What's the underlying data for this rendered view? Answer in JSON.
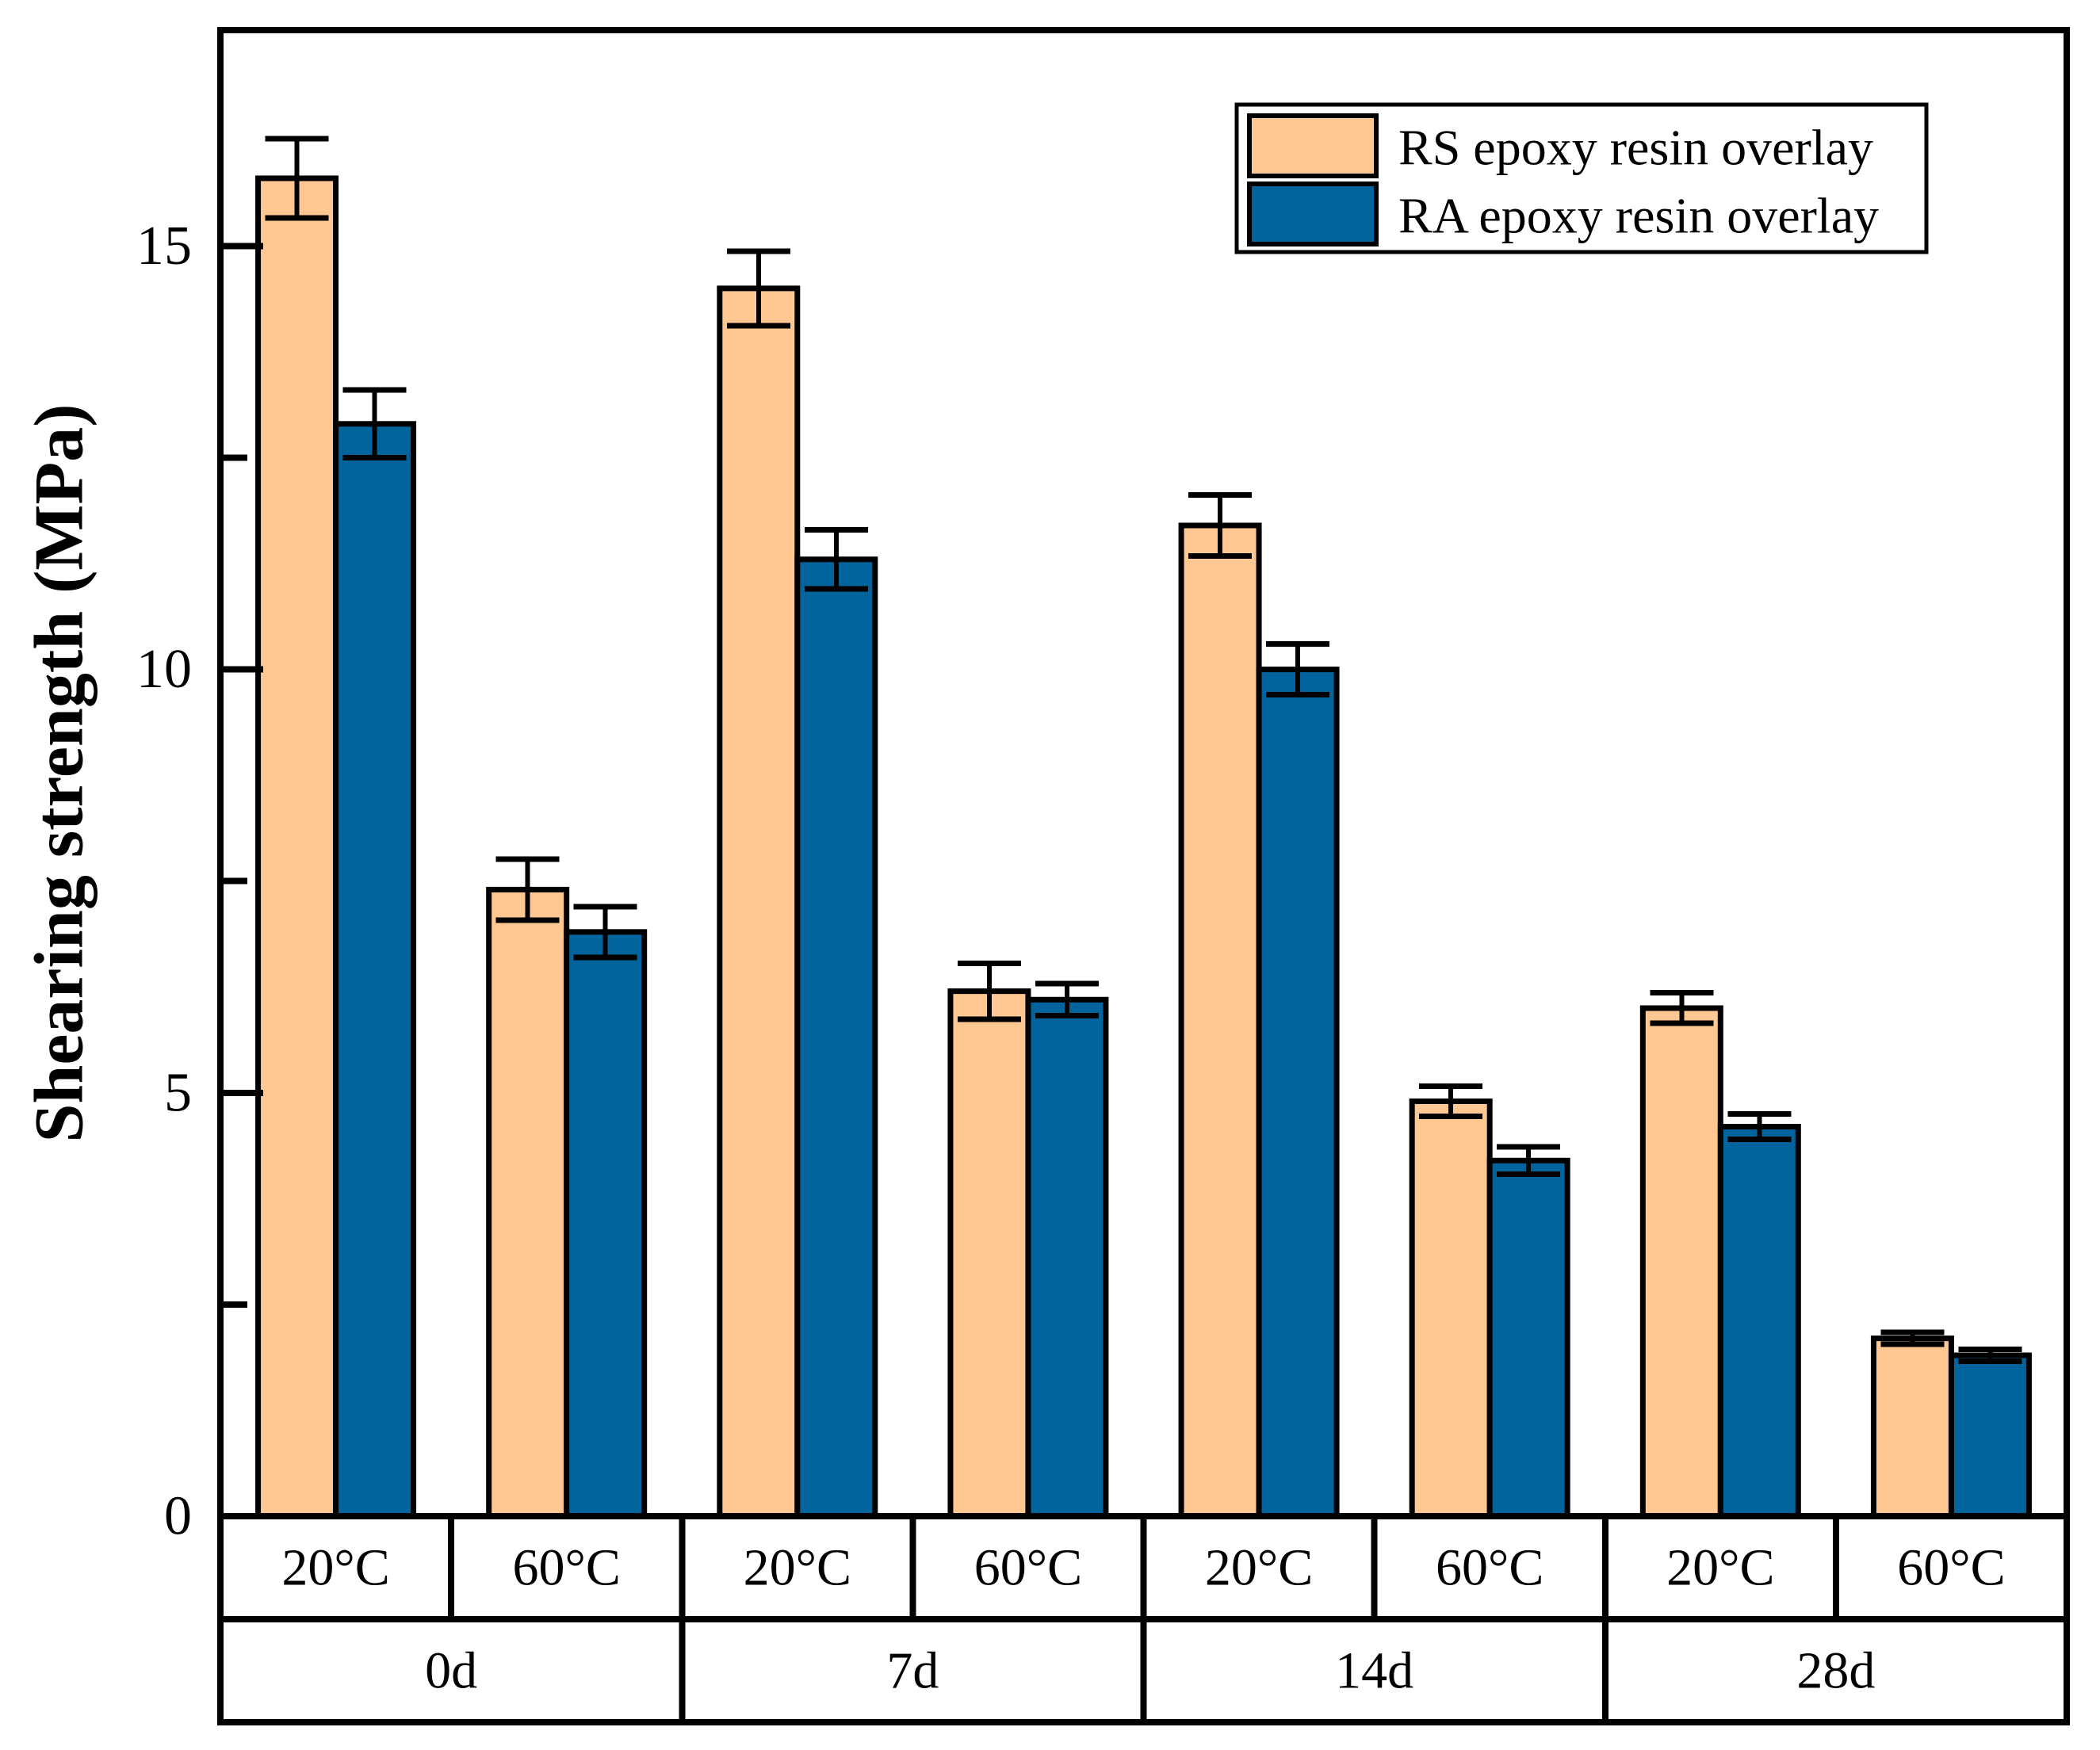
{
  "figure": {
    "background": "#ffffff",
    "axis_color": "#000000",
    "y_axis": {
      "label": "Shearing strength (MPa)",
      "major_ticks": [
        0,
        5,
        10,
        15
      ],
      "minor_ticks": [
        2.5,
        7.5,
        12.5
      ]
    },
    "legend": {
      "items": [
        {
          "label": "RS epoxy resin overlay",
          "color": "#FFC893"
        },
        {
          "label": "RA epoxy resin overlay",
          "color": "#01649C"
        }
      ]
    }
  },
  "chart_data": {
    "type": "bar",
    "title": "",
    "xlabel": "",
    "ylabel": "Shearing strength (MPa)",
    "ylim": [
      0,
      17.55
    ],
    "grid": false,
    "legend_position": "top-right",
    "group_labels": [
      "0d",
      "7d",
      "14d",
      "28d"
    ],
    "subgroup_labels": [
      "20°C",
      "60°C"
    ],
    "categories": [
      "0d 20°C",
      "0d 60°C",
      "7d 20°C",
      "7d 60°C",
      "14d 20°C",
      "14d 60°C",
      "28d 20°C",
      "28d 60°C"
    ],
    "series": [
      {
        "name": "RS epoxy resin overlay",
        "color": "#FFC893",
        "values": [
          15.8,
          7.4,
          14.5,
          6.2,
          11.7,
          4.9,
          6.0,
          2.1
        ],
        "errors": [
          0.47,
          0.36,
          0.44,
          0.33,
          0.36,
          0.18,
          0.18,
          0.07
        ]
      },
      {
        "name": "RA epoxy resin overlay",
        "color": "#01649C",
        "values": [
          12.9,
          6.9,
          11.3,
          6.1,
          10.0,
          4.2,
          4.6,
          1.9
        ],
        "errors": [
          0.4,
          0.3,
          0.35,
          0.19,
          0.3,
          0.16,
          0.15,
          0.07
        ]
      }
    ]
  }
}
